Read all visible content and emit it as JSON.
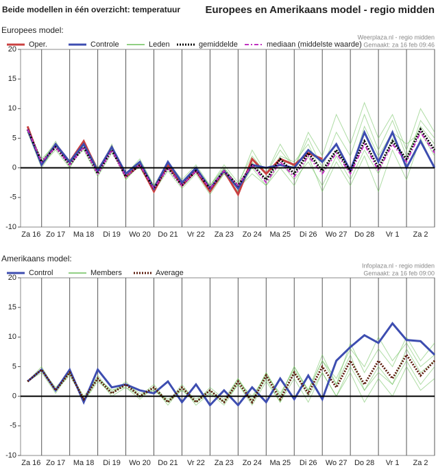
{
  "header": {
    "left": "Beide modellen in één overzicht: temperatuur",
    "right": "Europees en Amerikaans model - regio midden"
  },
  "chart_data": [
    {
      "type": "line",
      "subtitle": "Europees model:",
      "source": "Weerplaza.nl - regio midden",
      "created": "Gemaakt: za 16 feb 09:46",
      "categories": [
        "Za 16",
        "Zo 17",
        "Ma 18",
        "Di 19",
        "Wo 20",
        "Do 21",
        "Vr 22",
        "Za 23",
        "Zo 24",
        "Ma 25",
        "Di 26",
        "Wo 27",
        "Do 28",
        "Vr 1",
        "Za 2"
      ],
      "xlim": [
        -0.75,
        14
      ],
      "xticks": [
        0,
        1,
        2,
        3,
        4,
        5,
        6,
        7,
        8,
        9,
        10,
        11,
        12,
        13,
        14
      ],
      "ylim": [
        -10,
        20
      ],
      "yticks": [
        -10,
        -5,
        0,
        5,
        10,
        15,
        20
      ],
      "x": [
        -0.5,
        0,
        0.5,
        1,
        1.5,
        2,
        2.5,
        3,
        3.5,
        4,
        4.5,
        5,
        5.5,
        6,
        6.5,
        7,
        7.5,
        8,
        8.5,
        9,
        9.5,
        10,
        10.5,
        11,
        11.5,
        12,
        12.5,
        13,
        13.5,
        14
      ],
      "series": [
        {
          "name": "Oper.",
          "color": "#c94040",
          "width": 3,
          "style": "solid",
          "values": [
            7,
            0.5,
            4,
            1,
            4.5,
            -0.5,
            3.5,
            -1.5,
            0.5,
            -4,
            0.5,
            -3,
            -0.5,
            -4,
            -0.5,
            -4.5,
            1.5,
            -1,
            1.5,
            0.5,
            2.5,
            1.5,
            null,
            null,
            null,
            null,
            null,
            null,
            null,
            null
          ]
        },
        {
          "name": "Controle",
          "color": "#3d4db0",
          "width": 3,
          "style": "solid",
          "values": [
            6.5,
            0.5,
            4,
            1,
            4,
            -0.5,
            3.5,
            -1,
            1,
            -3.5,
            1,
            -2.5,
            0,
            -3.5,
            -0.5,
            -3.5,
            0.5,
            0,
            0.5,
            0,
            3,
            1,
            4,
            -0.5,
            6,
            1,
            6,
            0,
            4.5,
            0
          ]
        },
        {
          "name": "Leden",
          "color": "#6cbf5a",
          "width": 1,
          "style": "solid",
          "values": [
            [
              7,
              1,
              4.5,
              0,
              4,
              -1,
              4,
              -2,
              1,
              -3.5,
              0.5,
              -3,
              0,
              -3,
              0.5,
              -2.5,
              2,
              -1,
              3,
              0,
              5,
              0,
              6,
              2,
              9,
              3,
              8,
              2,
              7,
              4
            ],
            [
              6,
              0,
              3.5,
              1,
              3,
              -1.5,
              2.5,
              -1,
              0,
              -4,
              -0.5,
              -3.5,
              -1,
              -4.5,
              -1,
              -4,
              0,
              -3,
              1,
              -2,
              1,
              -3,
              2,
              -2,
              3,
              -1,
              5,
              1,
              8,
              5
            ],
            [
              6.5,
              1.5,
              4,
              0.5,
              3.5,
              -0.5,
              3,
              -1.5,
              1,
              -3,
              0,
              -2.5,
              -0.5,
              -3,
              0,
              -3,
              3,
              -1,
              4,
              0,
              6,
              2,
              9,
              4,
              11,
              5,
              9,
              3,
              10,
              6
            ],
            [
              7,
              0.5,
              3,
              0,
              4,
              -1,
              3.5,
              -2,
              0.5,
              -3.5,
              0,
              -3,
              0,
              -4,
              -1,
              -3.5,
              -1,
              -3,
              0,
              -3,
              2,
              -4,
              1,
              -3,
              2,
              -4,
              3,
              -2,
              5,
              0
            ],
            [
              6,
              1,
              4,
              1,
              4.5,
              0,
              3,
              -1,
              1.5,
              -3,
              1,
              -2,
              0.5,
              -3,
              0,
              -3,
              1,
              -2,
              2,
              1,
              4,
              -1,
              3,
              -1,
              7,
              2,
              6,
              4,
              6,
              2
            ]
          ]
        },
        {
          "name": "gemiddelde",
          "color": "#000000",
          "width": 3,
          "style": "dotted",
          "values": [
            6.5,
            1,
            3.5,
            0.5,
            3.5,
            -1,
            3,
            -1.5,
            0.5,
            -3.5,
            0,
            -3,
            -0.5,
            -3.5,
            -0.5,
            -3,
            0.5,
            -2,
            1.5,
            -1,
            2.5,
            -0.5,
            3,
            -0.5,
            4.5,
            0,
            4.5,
            1.5,
            6.5,
            3
          ]
        },
        {
          "name": "mediaan (middelste waarde)",
          "color": "#c030c0",
          "width": 2,
          "style": "dashdot",
          "values": [
            6.5,
            1,
            3.5,
            0.5,
            3.5,
            -1,
            3,
            -1.5,
            0.5,
            -3.5,
            0,
            -3,
            -0.5,
            -3.5,
            -0.5,
            -3,
            0.5,
            -2.5,
            1,
            -1.5,
            2,
            -1,
            2.5,
            -1,
            4,
            -0.5,
            4,
            1,
            6,
            2.5
          ]
        }
      ]
    },
    {
      "type": "line",
      "subtitle": "Amerikaans model:",
      "source": "Infoplaza.nl - regio midden",
      "created": "Gemaakt: za 16 feb 09:00",
      "categories": [
        "Za 16",
        "Zo 17",
        "Ma 18",
        "Di 19",
        "Wo 20",
        "Do 21",
        "Vr 22",
        "Za 23",
        "Zo 24",
        "Ma 25",
        "Di 26",
        "Wo 27",
        "Do 28",
        "Vr 1",
        "Za 2"
      ],
      "xlim": [
        -0.75,
        14
      ],
      "xticks": [
        0,
        1,
        2,
        3,
        4,
        5,
        6,
        7,
        8,
        9,
        10,
        11,
        12,
        13,
        14
      ],
      "ylim": [
        -10,
        20
      ],
      "yticks": [
        -10,
        -5,
        0,
        5,
        10,
        15,
        20
      ],
      "x": [
        -0.5,
        0,
        0.5,
        1,
        1.5,
        2,
        2.5,
        3,
        3.5,
        4,
        4.5,
        5,
        5.5,
        6,
        6.5,
        7,
        7.5,
        8,
        8.5,
        9,
        9.5,
        10,
        10.5,
        11,
        11.5,
        12,
        12.5,
        13,
        13.5,
        14
      ],
      "series": [
        {
          "name": "Control",
          "color": "#3d4db0",
          "width": 3,
          "style": "solid",
          "values": [
            2.5,
            4.5,
            1,
            4.5,
            -1,
            4.5,
            1.5,
            2,
            1,
            0.5,
            2.5,
            -1,
            2,
            -1.5,
            1,
            -1.5,
            1.5,
            -1,
            3,
            -0.5,
            3.5,
            -0.5,
            6,
            8.3,
            10.3,
            9,
            12.3,
            9.5,
            9.3,
            7
          ]
        },
        {
          "name": "Members",
          "color": "#6cbf5a",
          "width": 1,
          "style": "solid",
          "values": [
            [
              2.5,
              4.5,
              1,
              4,
              0,
              3,
              1,
              2,
              0,
              1,
              -1,
              1,
              -1,
              1,
              -1,
              3,
              -1,
              4,
              0,
              5,
              1,
              6,
              3,
              8,
              5,
              10,
              6,
              9,
              5,
              7
            ],
            [
              2.5,
              4,
              0.5,
              4,
              -1,
              3,
              0,
              1.5,
              -0.5,
              1.5,
              -1.5,
              1.5,
              -1.5,
              0.5,
              -1.5,
              2,
              -1.5,
              2.5,
              -1,
              3,
              -1,
              4,
              0,
              4,
              -1,
              3,
              0,
              5,
              1,
              3
            ],
            [
              2.5,
              5,
              1,
              4.5,
              -0.5,
              3.5,
              0.5,
              2.5,
              0,
              2,
              -1,
              2,
              -1,
              1.5,
              -0.5,
              3,
              -0.5,
              4,
              0,
              5,
              1,
              7,
              2,
              9,
              4,
              8,
              5,
              10,
              6,
              9
            ],
            [
              2.5,
              4.5,
              1.5,
              4,
              -1,
              2.5,
              0.5,
              2,
              0.5,
              1,
              -0.5,
              1,
              -1,
              0.5,
              -1,
              2,
              -1,
              3,
              -1,
              4,
              0,
              4,
              0,
              5,
              1,
              4,
              2,
              6,
              2,
              5
            ],
            [
              2.5,
              4.5,
              1,
              3.5,
              -0.5,
              3,
              1,
              1.5,
              0,
              1.5,
              -1,
              1.5,
              -0.5,
              1,
              -1,
              2.5,
              0,
              3.5,
              0.5,
              4.5,
              1,
              6,
              2,
              7,
              1,
              5,
              2,
              8,
              4,
              6
            ]
          ]
        },
        {
          "name": "Average",
          "color": "#5a1a0a",
          "width": 3,
          "style": "dotted",
          "values": [
            2.5,
            4.5,
            1,
            4,
            -0.5,
            3,
            0.5,
            2,
            0,
            1.5,
            -1,
            1.5,
            -1,
            1,
            -1,
            2.5,
            -1,
            3.5,
            -0.5,
            4,
            0.5,
            5,
            1.5,
            6,
            2,
            6,
            3,
            7,
            3.5,
            6
          ]
        }
      ]
    }
  ]
}
